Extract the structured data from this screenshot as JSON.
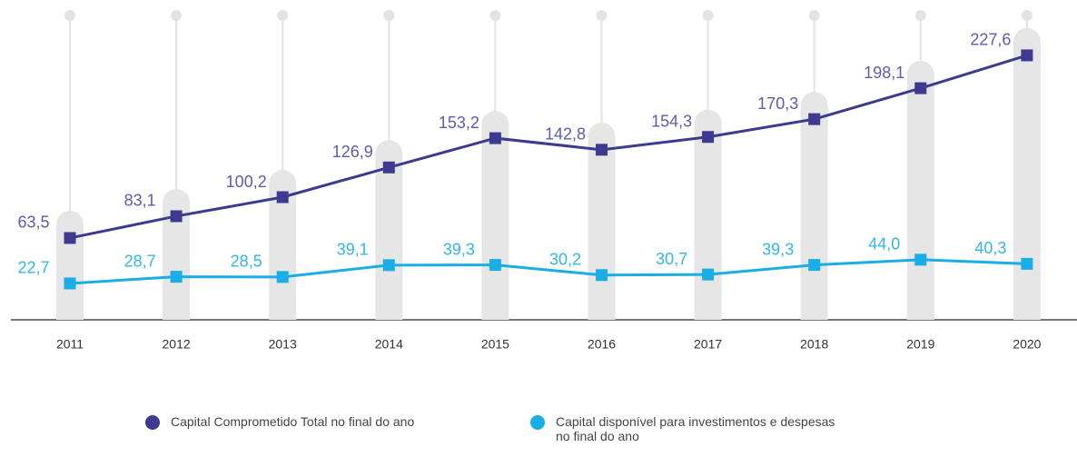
{
  "chart_data": {
    "type": "line",
    "categories": [
      "2011",
      "2012",
      "2013",
      "2014",
      "2015",
      "2016",
      "2017",
      "2018",
      "2019",
      "2020"
    ],
    "series": [
      {
        "name": "Capital Comprometido Total no final do ano",
        "color": "#3d3a8f",
        "values": [
          63.5,
          83.1,
          100.2,
          126.9,
          153.2,
          142.8,
          154.3,
          170.3,
          198.1,
          227.6
        ],
        "value_labels": [
          "63,5",
          "83,1",
          "100,2",
          "126,9",
          "153,2",
          "142,8",
          "154,3",
          "170,3",
          "198,1",
          "227,6"
        ]
      },
      {
        "name": "Capital disponível para investimentos e despesas no final do ano",
        "color": "#1aaee6",
        "values": [
          22.7,
          28.7,
          28.5,
          39.1,
          39.3,
          30.2,
          30.7,
          39.3,
          44.0,
          40.3
        ],
        "value_labels": [
          "22,7",
          "28,7",
          "28,5",
          "39,1",
          "39,3",
          "30,2",
          "30,7",
          "39,3",
          "44,0",
          "40,3"
        ]
      }
    ],
    "ylim": [
      -10,
      240
    ]
  }
}
